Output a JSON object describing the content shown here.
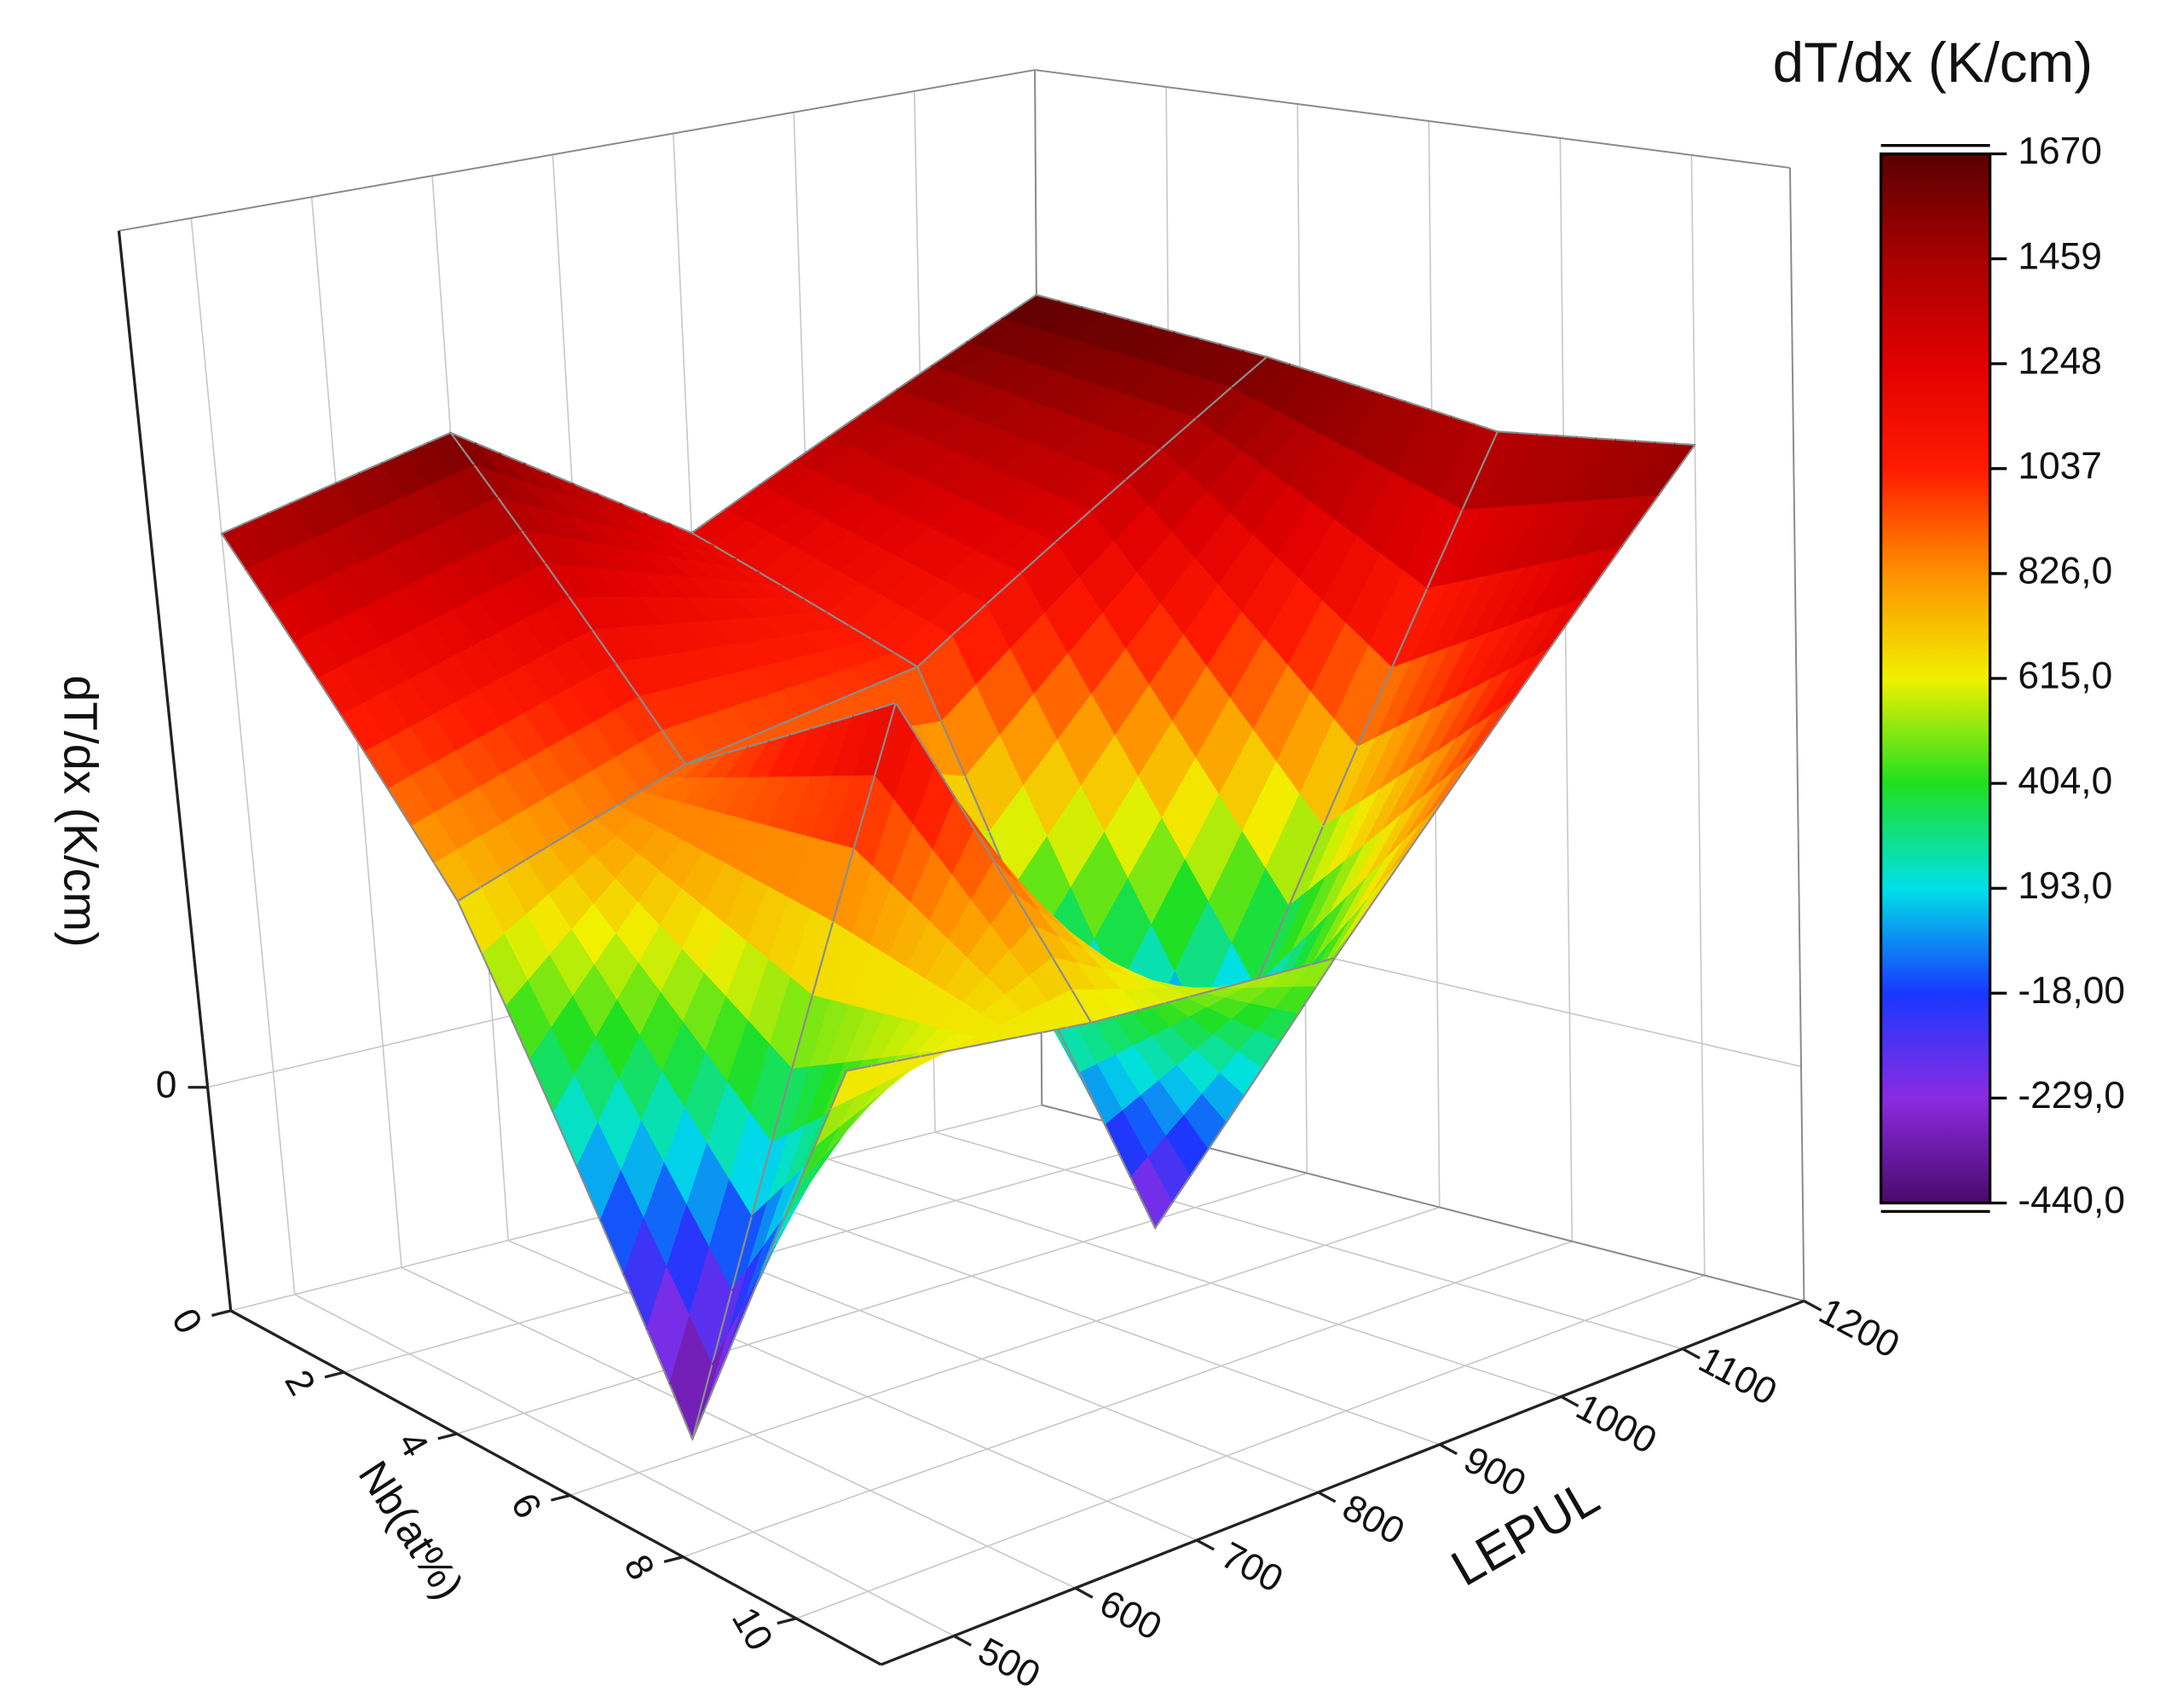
{
  "chart_data": {
    "type": "surface3d",
    "x_label": "Nb(at%)",
    "y_label": "LEPUL",
    "z_label": "dT/dx (K/cm)",
    "x": [
      0,
      3.5,
      7,
      10
    ],
    "y": [
      500,
      700,
      900,
      1200
    ],
    "z": [
      [
        1450,
        700,
        -440,
        690
      ],
      [
        1600,
        900,
        1250,
        600
      ],
      [
        1200,
        1000,
        -300,
        550
      ],
      [
        1670,
        1600,
        1500,
        1550
      ]
    ],
    "xlim": [
      0,
      11.5
    ],
    "xticks": [
      0,
      2,
      4,
      6,
      8,
      10
    ],
    "ylim": [
      440,
      1200
    ],
    "yticks": [
      500,
      600,
      700,
      800,
      900,
      1000,
      1100,
      1200
    ],
    "zlim": [
      -600,
      2300
    ],
    "zticks": [
      0
    ],
    "grid": true,
    "colorbar": {
      "title": "dT/dx (K/cm)",
      "lim": [
        -440,
        1670
      ],
      "colors": [
        "#4a0a6a",
        "#8a2be2",
        "#1838ff",
        "#00e0e8",
        "#20e020",
        "#f0f000",
        "#ff9000",
        "#ff1a00",
        "#e00000",
        "#a80000",
        "#5a0000"
      ],
      "ticks": [
        1670,
        1459,
        1248,
        1037,
        {
          "value": 826,
          "label": "826,0"
        },
        {
          "value": 615,
          "label": "615,0"
        },
        {
          "value": 404,
          "label": "404,0"
        },
        {
          "value": 193,
          "label": "193,0"
        },
        {
          "value": -18,
          "label": "-18,00"
        },
        {
          "value": -229,
          "label": "-229,0"
        },
        {
          "value": -440,
          "label": "-440,0"
        }
      ]
    }
  }
}
